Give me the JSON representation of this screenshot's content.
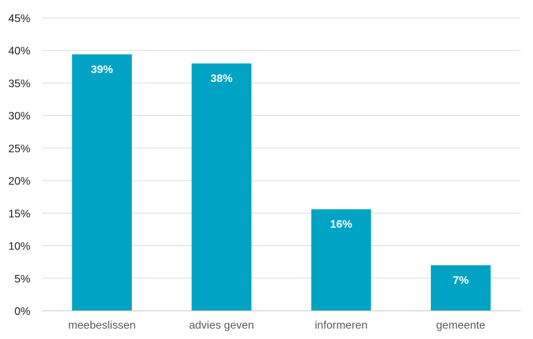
{
  "chart_data": {
    "type": "bar",
    "categories": [
      "meebeslissen",
      "advies geven",
      "informeren",
      "gemeente"
    ],
    "values": [
      39.4,
      38.0,
      15.6,
      7.0
    ],
    "data_labels": [
      "39%",
      "38%",
      "16%",
      "7%"
    ],
    "y_ticks": [
      "0%",
      "5%",
      "10%",
      "15%",
      "20%",
      "25%",
      "30%",
      "35%",
      "40%",
      "45%"
    ],
    "ylim": [
      0,
      45
    ],
    "grid": true,
    "legend": "none",
    "title": "",
    "xlabel": "",
    "ylabel": "",
    "bar_color": "#00a3c4"
  }
}
